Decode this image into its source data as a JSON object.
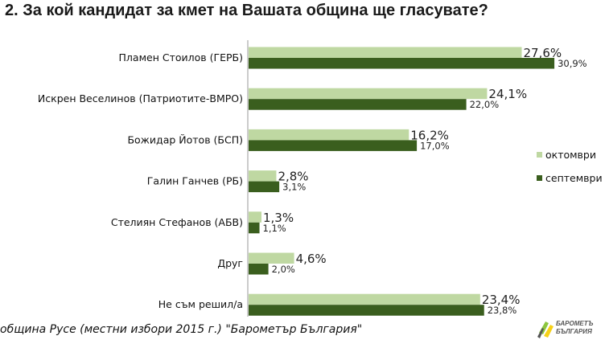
{
  "title": "2. За кой кандидат за кмет на Вашата община ще гласувате?",
  "footer": "община Русе (местни избори 2015 г.) \"Барометър България\"",
  "logo": {
    "line1": "БАРОМЕТЪ",
    "line2": "БЪЛГАРИЯ",
    "colors": [
      "#8dc63f",
      "#f7d117",
      "#555555"
    ]
  },
  "colors": {
    "october": "#bfd8a2",
    "september": "#3a5e1e"
  },
  "chart_data": {
    "type": "bar",
    "orientation": "horizontal",
    "categories": [
      "Пламен Стоилов (ГЕРБ)",
      "Искрен Веселинов (Патриотите-ВМРО)",
      "Божидар Йотов (БСП)",
      "Галин Ганчев (РБ)",
      "Стелиян Стефанов (АБВ)",
      "Друг",
      "Не съм решил/а"
    ],
    "series": [
      {
        "name": "октомври",
        "color": "#bfd8a2",
        "values": [
          27.6,
          24.1,
          16.2,
          2.8,
          1.3,
          4.6,
          23.4
        ],
        "labels": [
          "27,6%",
          "24,1%",
          "16,2%",
          "2,8%",
          "1,3%",
          "4,6%",
          "23,4%"
        ]
      },
      {
        "name": "септември",
        "color": "#3a5e1e",
        "values": [
          30.9,
          22.0,
          17.0,
          3.1,
          1.1,
          2.0,
          23.8
        ],
        "labels": [
          "30,9%",
          "22,0%",
          "17,0%",
          "3,1%",
          "1,1%",
          "2,0%",
          "23,8%"
        ]
      }
    ],
    "xlim": [
      0,
      32
    ],
    "grid": false,
    "legend": "right"
  }
}
